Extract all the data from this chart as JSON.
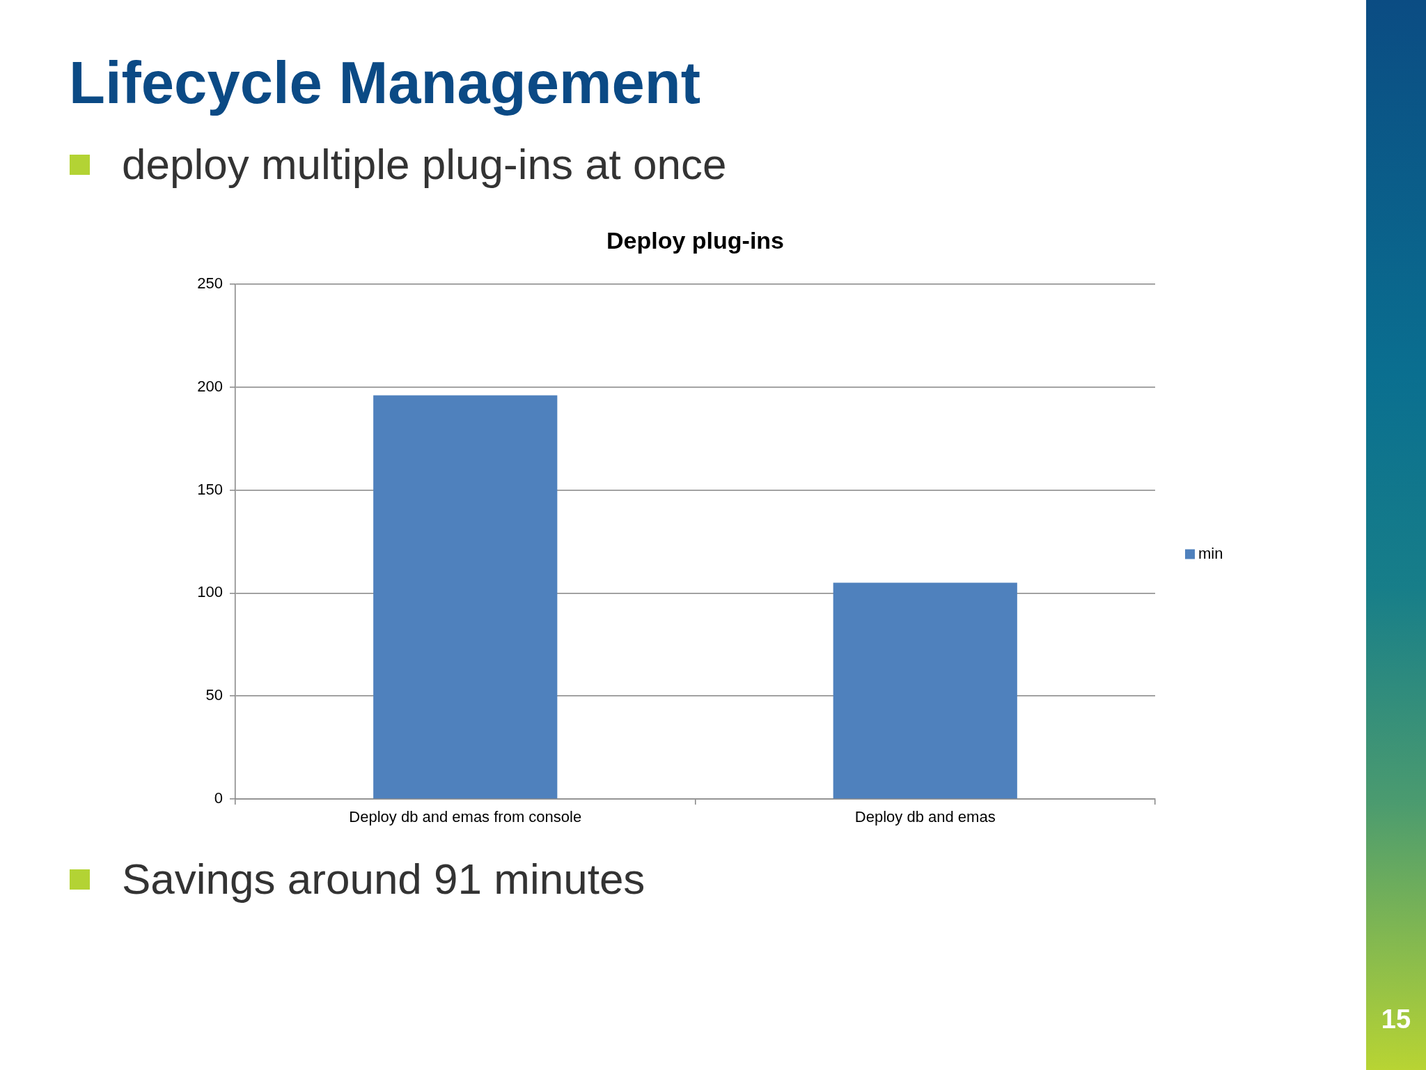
{
  "chart_data": {
    "type": "bar",
    "title": "Lifecycle Management",
    "subtitle": "Deploy plug-ins",
    "categories": [
      "Deploy db and emas from console",
      "Deploy db and emas"
    ],
    "series": [
      {
        "name": "min",
        "color": "#4f81bd",
        "values": [
          196,
          105
        ]
      }
    ],
    "ylim": [
      0,
      250
    ],
    "yticks": [
      0,
      50,
      100,
      150,
      200,
      250
    ],
    "grid": "y",
    "legend": "right",
    "annotations": [
      "deploy multiple plug-ins at once",
      "Savings around 91 minutes",
      "15"
    ]
  }
}
